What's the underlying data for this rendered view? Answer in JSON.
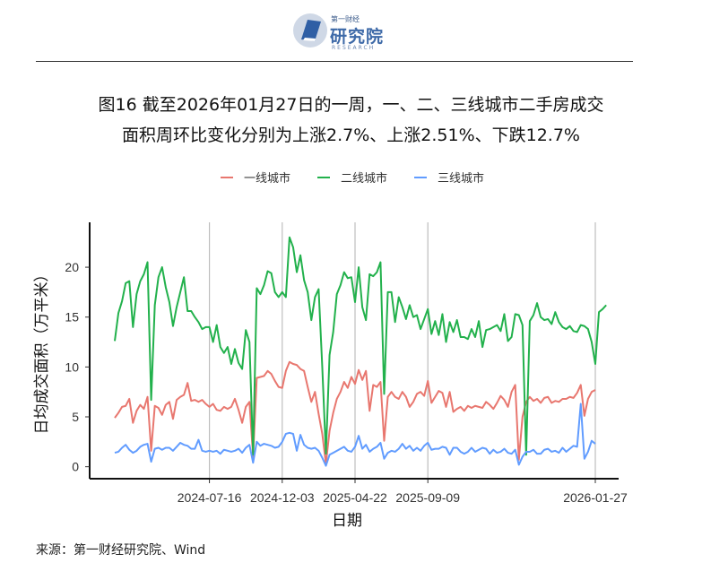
{
  "logo": {
    "top": "第一财经",
    "main": "研究院",
    "sub": "RESEARCH",
    "color": "#3e6aa8",
    "icon": "book-logo-icon"
  },
  "title_line1": "图16  截至2026年01月27日的一周，一、二、三线城市二手房成交",
  "title_line2": "面积周环比变化分别为上涨2.7%、上涨2.51%、下跌12.7%",
  "source": "来源：第一财经研究院、Wind",
  "chart_data": {
    "type": "line",
    "xlabel": "日期",
    "ylabel": "日均成交面积（万平米）",
    "ylim": [
      -1.2,
      24.5
    ],
    "yticks": [
      0,
      5,
      10,
      15,
      20
    ],
    "xticks": [
      "2024-07-16",
      "2024-12-03",
      "2025-04-22",
      "2025-09-09",
      "2026-01-27"
    ],
    "legend_position": "top",
    "vertical_gridlines": true,
    "series": [
      {
        "name": "一线城市",
        "color": "#e8776f",
        "values": [
          4.9,
          5.4,
          6.0,
          6.1,
          6.8,
          4.4,
          5.6,
          6.2,
          5.8,
          7.0,
          1.6,
          6.1,
          5.9,
          5.2,
          6.2,
          6.5,
          4.8,
          6.7,
          7.0,
          7.2,
          8.4,
          6.6,
          6.7,
          6.5,
          6.7,
          6.3,
          6.0,
          6.3,
          5.7,
          5.6,
          6.0,
          5.8,
          6.0,
          6.8,
          5.7,
          4.4,
          6.0,
          6.5,
          1.0,
          8.9,
          9.0,
          9.1,
          9.6,
          9.3,
          8.6,
          8.0,
          7.9,
          9.6,
          10.5,
          10.3,
          10.2,
          9.8,
          9.6,
          8.0,
          6.5,
          7.5,
          5.3,
          3.3,
          0.3,
          3.6,
          5.4,
          6.8,
          7.5,
          8.5,
          7.9,
          9.0,
          8.3,
          9.7,
          8.7,
          9.6,
          5.6,
          8.2,
          8.0,
          8.5,
          2.6,
          7.0,
          7.5,
          7.0,
          6.8,
          7.5,
          7.0,
          6.0,
          6.5,
          7.3,
          7.5,
          7.1,
          8.6,
          6.4,
          7.0,
          7.6,
          7.4,
          6.0,
          7.5,
          5.5,
          5.8,
          6.0,
          5.6,
          6.1,
          5.9,
          6.1,
          6.0,
          5.9,
          6.5,
          6.2,
          5.8,
          6.4,
          7.1,
          6.7,
          6.0,
          7.5,
          8.2,
          0.7,
          5.0,
          6.5,
          7.0,
          6.6,
          6.8,
          6.4,
          6.9,
          7.0,
          6.4,
          6.6,
          6.5,
          6.8,
          6.8,
          7.0,
          6.9,
          7.4,
          8.2,
          5.1,
          6.8,
          7.5,
          7.7
        ]
      },
      {
        "name": "二线城市",
        "color": "#22b14c",
        "values": [
          12.6,
          15.4,
          16.6,
          18.4,
          18.6,
          14.0,
          17.3,
          18.6,
          19.3,
          20.5,
          6.7,
          16.2,
          19.0,
          20.0,
          18.0,
          16.5,
          14.1,
          16.0,
          17.5,
          19.0,
          15.6,
          15.6,
          15.0,
          14.5,
          13.8,
          14.0,
          14.0,
          12.5,
          14.2,
          12.0,
          11.4,
          12.0,
          10.3,
          11.8,
          10.4,
          9.8,
          13.7,
          12.5,
          1.2,
          17.9,
          17.3,
          18.2,
          19.6,
          19.4,
          17.5,
          17.0,
          17.5,
          17.0,
          23.0,
          22.0,
          19.5,
          21.2,
          18.7,
          17.5,
          14.7,
          17.0,
          17.8,
          10.0,
          1.3,
          11.2,
          13.5,
          17.3,
          18.2,
          19.5,
          18.9,
          19.0,
          16.5,
          20.0,
          16.0,
          14.7,
          19.3,
          19.1,
          19.5,
          20.5,
          7.3,
          17.5,
          17.5,
          14.5,
          17.0,
          16.0,
          14.8,
          16.2,
          15.0,
          15.2,
          13.8,
          14.8,
          15.8,
          13.3,
          14.6,
          13.2,
          15.3,
          12.5,
          14.5,
          13.5,
          14.7,
          13.0,
          13.0,
          12.8,
          13.8,
          13.0,
          14.6,
          12.0,
          13.7,
          13.8,
          14.0,
          14.2,
          13.6,
          15.3,
          12.6,
          13.0,
          15.3,
          15.2,
          14.2,
          1.2,
          14.6,
          15.2,
          16.4,
          15.0,
          14.7,
          14.8,
          14.3,
          15.5,
          14.5,
          14.0,
          13.8,
          14.1,
          13.6,
          13.5,
          14.2,
          14.1,
          13.8,
          12.5,
          10.3,
          15.5,
          15.8,
          16.2
        ]
      },
      {
        "name": "三线城市",
        "color": "#619cff",
        "values": [
          1.4,
          1.5,
          1.9,
          2.2,
          1.7,
          1.4,
          1.6,
          2.0,
          2.2,
          2.3,
          0.5,
          1.8,
          1.9,
          1.7,
          1.9,
          1.9,
          1.6,
          2.0,
          2.4,
          2.2,
          2.1,
          1.8,
          1.8,
          2.7,
          1.6,
          1.5,
          1.6,
          1.5,
          1.6,
          1.3,
          1.7,
          1.6,
          1.5,
          1.6,
          1.8,
          1.4,
          1.9,
          2.2,
          0.4,
          2.5,
          2.1,
          2.3,
          2.2,
          2.1,
          1.9,
          2.0,
          2.5,
          3.3,
          3.4,
          3.3,
          1.6,
          3.2,
          2.2,
          1.9,
          1.8,
          1.9,
          1.6,
          0.9,
          0.1,
          1.2,
          1.4,
          1.6,
          1.8,
          2.0,
          1.6,
          1.5,
          2.0,
          3.1,
          1.8,
          2.2,
          1.5,
          1.8,
          2.0,
          2.4,
          0.8,
          1.4,
          1.6,
          1.5,
          1.8,
          2.3,
          1.8,
          2.1,
          1.6,
          1.9,
          1.6,
          2.1,
          2.4,
          1.7,
          1.8,
          1.8,
          2.0,
          1.9,
          1.2,
          1.9,
          1.9,
          1.5,
          1.3,
          1.5,
          1.9,
          1.5,
          1.7,
          1.9,
          1.8,
          1.3,
          1.7,
          1.4,
          1.5,
          1.8,
          1.4,
          1.3,
          1.7,
          0.2,
          1.0,
          1.5,
          1.5,
          1.7,
          1.3,
          1.3,
          1.7,
          1.8,
          1.5,
          1.6,
          1.4,
          1.9,
          1.5,
          1.8,
          2.1,
          2.0,
          6.3,
          0.8,
          1.5,
          2.6,
          2.3
        ]
      }
    ]
  }
}
